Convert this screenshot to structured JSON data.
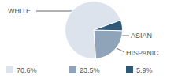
{
  "chart_data": {
    "type": "pie",
    "categories": [
      "WHITE",
      "HISPANIC",
      "ASIAN"
    ],
    "values": [
      70.6,
      23.5,
      5.9
    ],
    "value_labels": [
      "70.6%",
      "23.5%",
      "5.9%"
    ],
    "colors": [
      "#dde3ec",
      "#8fa3b9",
      "#2f5878"
    ],
    "legend": "bottom"
  }
}
